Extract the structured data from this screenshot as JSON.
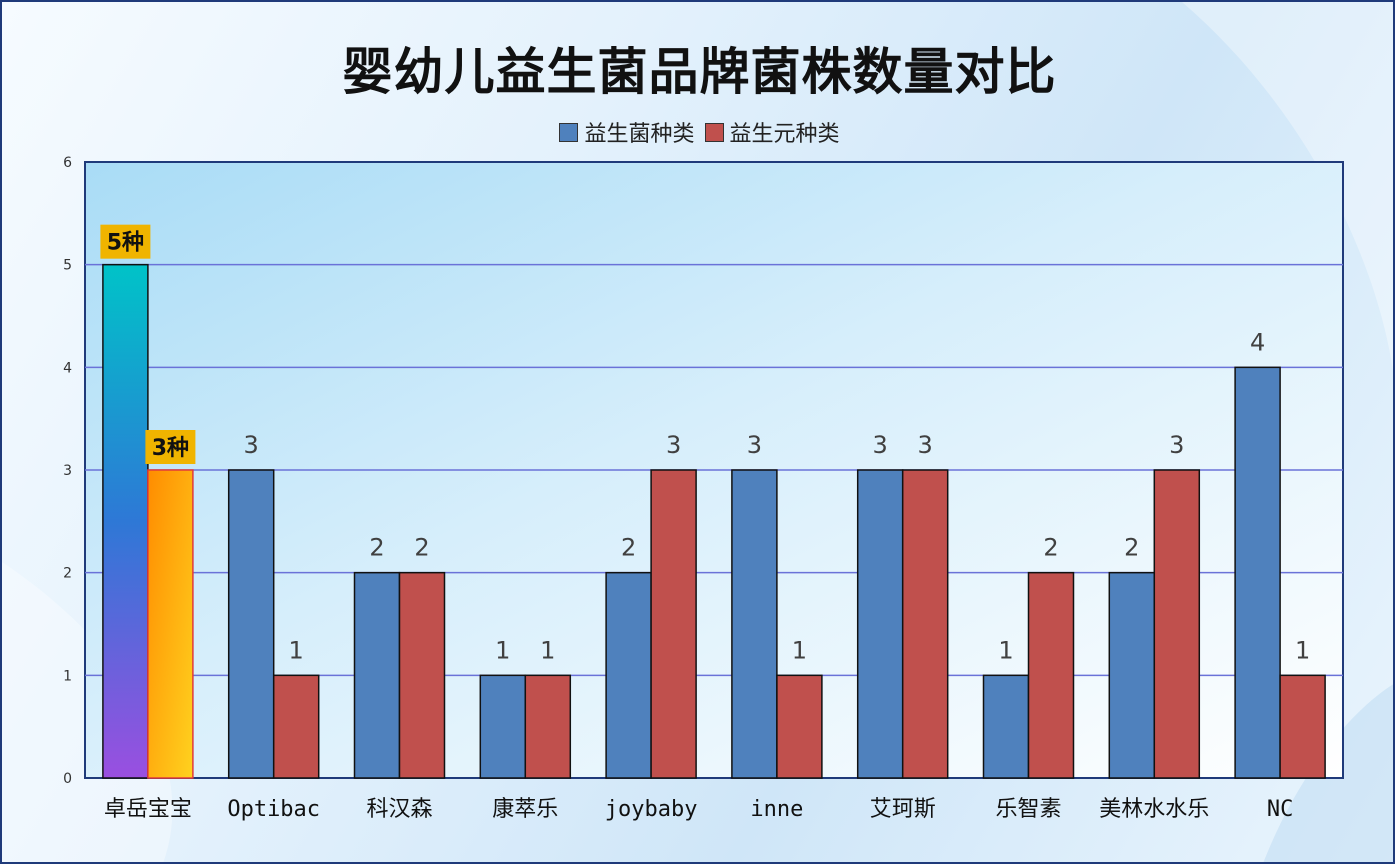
{
  "chart_data": {
    "type": "bar",
    "title": "婴幼儿益生菌品牌菌株数量对比",
    "xlabel": "",
    "ylabel": "",
    "ylim": [
      0,
      6
    ],
    "yticks": [
      0,
      1,
      2,
      3,
      4,
      5,
      6
    ],
    "grid": true,
    "legend_position": "top",
    "categories": [
      "卓岳宝宝",
      "Optibac",
      "科汉森",
      "康萃乐",
      "joybaby",
      "inne",
      "艾珂斯",
      "乐智素",
      "美林水水乐",
      "NC"
    ],
    "series": [
      {
        "name": "益生菌种类",
        "color": "#4f81bd",
        "values": [
          5,
          3,
          2,
          1,
          2,
          3,
          3,
          1,
          2,
          4
        ]
      },
      {
        "name": "益生元种类",
        "color": "#c0504d",
        "values": [
          3,
          1,
          2,
          1,
          3,
          1,
          3,
          2,
          3,
          1
        ]
      }
    ],
    "highlight": {
      "category_index": 0,
      "labels": [
        "5种",
        "3种"
      ],
      "label_bg": "#f0b400"
    }
  }
}
